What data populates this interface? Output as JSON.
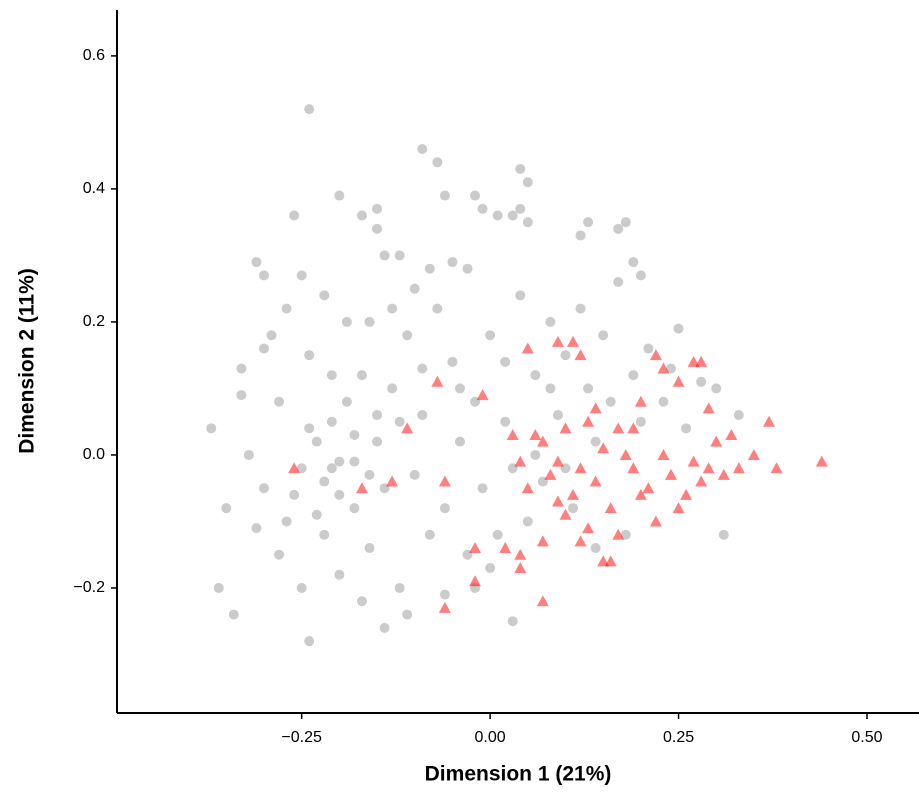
{
  "chart_data": {
    "type": "scatter",
    "xlabel": "Dimension 1 (21%)",
    "ylabel": "Dimension 2 (11%)",
    "xlim": [
      -0.495,
      0.569
    ],
    "ylim": [
      -0.388,
      0.669
    ],
    "xticks": [
      {
        "value": -0.25,
        "label": "−0.25"
      },
      {
        "value": 0,
        "label": "0.00"
      },
      0.25,
      {
        "value": 0.5,
        "label": "0.50"
      }
    ],
    "yticks": [
      {
        "value": -0.2,
        "label": "−0.2"
      },
      {
        "value": 0,
        "label": "0.0"
      },
      0.2,
      0.4,
      0.6
    ],
    "grid": false,
    "series": [
      {
        "color": "#a9a9a9",
        "marker": "circle",
        "opacity": 0.6,
        "x": [
          -0.37,
          -0.34,
          -0.36,
          -0.33,
          -0.31,
          -0.3,
          -0.26,
          -0.24,
          -0.24,
          -0.25,
          -0.22,
          -0.2,
          -0.17,
          -0.15,
          -0.15,
          -0.14,
          -0.12,
          -0.09,
          -0.07,
          -0.06,
          -0.02,
          -0.01,
          0.01,
          0.04,
          0.05,
          0.04,
          0.03,
          0.05,
          0.13,
          0.12,
          0.18,
          0.17,
          0.19,
          0.2,
          0.25,
          0.28,
          0.3,
          0.33,
          0.31,
          -0.32,
          -0.3,
          -0.28,
          -0.27,
          -0.25,
          -0.23,
          -0.22,
          -0.21,
          -0.2,
          -0.19,
          -0.18,
          -0.17,
          -0.16,
          -0.15,
          -0.14,
          -0.13,
          -0.12,
          -0.11,
          -0.1,
          -0.09,
          -0.08,
          -0.07,
          -0.06,
          -0.05,
          -0.04,
          -0.03,
          -0.02,
          -0.01,
          0,
          0.01,
          0.02,
          0.03,
          0.04,
          0.05,
          0.06,
          0.07,
          0.08,
          0.09,
          0.1,
          0.11,
          0.12,
          0.13,
          0.14,
          0.15,
          0.16,
          0.17,
          0.18,
          0.19,
          0.2,
          0.21,
          0.23,
          0.24,
          0.26,
          -0.29,
          -0.27,
          -0.24,
          -0.21,
          -0.19,
          -0.16,
          -0.13,
          -0.1,
          -0.08,
          -0.05,
          -0.03,
          -0.28,
          -0.25,
          -0.22,
          -0.2,
          -0.17,
          -0.14,
          -0.11,
          -0.06,
          -0.02,
          0.03,
          -0.35,
          -0.33,
          -0.31,
          -0.3,
          -0.26,
          -0.23,
          -0.18,
          -0.15,
          -0.12,
          0,
          0.02,
          0.06,
          0.1,
          0.14,
          0.08,
          -0.04,
          -0.09,
          -0.2,
          -0.24,
          -0.16,
          -0.21,
          -0.18
        ],
        "values": [
          0.04,
          -0.24,
          -0.2,
          0.13,
          0.29,
          0.27,
          0.36,
          0.52,
          -0.28,
          0.27,
          0.24,
          0.39,
          0.36,
          0.37,
          0.34,
          0.3,
          0.3,
          0.46,
          0.44,
          0.39,
          0.39,
          0.37,
          0.36,
          0.43,
          0.41,
          0.37,
          0.36,
          0.35,
          0.35,
          0.33,
          0.35,
          0.34,
          0.29,
          0.27,
          0.19,
          0.11,
          0.1,
          0.06,
          -0.12,
          0,
          -0.05,
          0.08,
          -0.1,
          -0.02,
          0.02,
          -0.04,
          0.05,
          -0.01,
          0.08,
          -0.08,
          0.12,
          -0.14,
          0.02,
          -0.05,
          0.1,
          -0.2,
          0.18,
          -0.03,
          0.06,
          -0.12,
          0.22,
          -0.08,
          0.14,
          0.02,
          -0.15,
          0.08,
          -0.05,
          0.18,
          -0.12,
          0.05,
          -0.02,
          0.24,
          -0.1,
          0.12,
          -0.04,
          0.2,
          0.06,
          0.15,
          -0.08,
          0.22,
          0.1,
          0.02,
          0.18,
          0.08,
          0.26,
          -0.12,
          0.12,
          0.05,
          0.16,
          0.08,
          0.13,
          0.04,
          0.18,
          0.22,
          0.15,
          0.12,
          0.2,
          0.2,
          0.22,
          0.25,
          0.28,
          0.29,
          0.28,
          -0.15,
          -0.2,
          -0.12,
          -0.18,
          -0.22,
          -0.26,
          -0.24,
          -0.21,
          -0.2,
          -0.25,
          -0.08,
          0.09,
          -0.11,
          0.16,
          -0.06,
          -0.09,
          0.03,
          0.06,
          0.05,
          -0.17,
          0.14,
          0,
          -0.02,
          -0.14,
          0.1,
          0.1,
          0.13,
          -0.06,
          0.04,
          -0.03,
          -0.02,
          -0.01
        ]
      },
      {
        "color": "#ff0000",
        "marker": "triangle",
        "opacity": 0.5,
        "x": [
          0.44,
          0.38,
          0.37,
          0.35,
          0.32,
          0.3,
          0.29,
          0.28,
          0.27,
          0.25,
          0.22,
          0.23,
          0.2,
          0.18,
          0.09,
          0.11,
          0.05,
          0.12,
          0.13,
          0.1,
          0.07,
          0.04,
          0.03,
          0.05,
          0.08,
          0.11,
          0.14,
          0.16,
          0.19,
          0.21,
          0.24,
          0.26,
          0.28,
          0.31,
          0.22,
          0.25,
          0.17,
          0.13,
          0.1,
          0.07,
          0.04,
          0.02,
          -0.02,
          -0.02,
          -0.06,
          0.04,
          0.07,
          0.15,
          0.16,
          0.12,
          0.15,
          0.09,
          0.06,
          0.2,
          0.23,
          0.27,
          0.17,
          0.14,
          0.19,
          0.09,
          0.12,
          -0.07,
          -0.11,
          -0.17,
          -0.26,
          -0.06,
          -0.01,
          -0.13,
          0.29,
          0.33
        ],
        "values": [
          -0.01,
          -0.02,
          0.05,
          0,
          0.03,
          0.02,
          -0.02,
          0.14,
          0.14,
          0.11,
          0.15,
          0.13,
          0.08,
          0,
          0.17,
          0.17,
          0.16,
          0.15,
          0.05,
          0.04,
          0.02,
          -0.01,
          0.03,
          -0.05,
          -0.03,
          -0.06,
          -0.04,
          -0.08,
          -0.02,
          -0.05,
          -0.03,
          -0.06,
          -0.04,
          -0.03,
          -0.1,
          -0.08,
          -0.12,
          -0.11,
          -0.09,
          -0.13,
          -0.15,
          -0.14,
          -0.14,
          -0.19,
          -0.23,
          -0.17,
          -0.22,
          -0.16,
          -0.16,
          -0.02,
          0.01,
          -0.01,
          0.03,
          -0.06,
          0,
          -0.01,
          0.04,
          0.07,
          0.04,
          -0.07,
          -0.13,
          0.11,
          0.04,
          -0.05,
          -0.02,
          -0.04,
          0.09,
          -0.04,
          0.07,
          -0.02
        ]
      }
    ]
  }
}
